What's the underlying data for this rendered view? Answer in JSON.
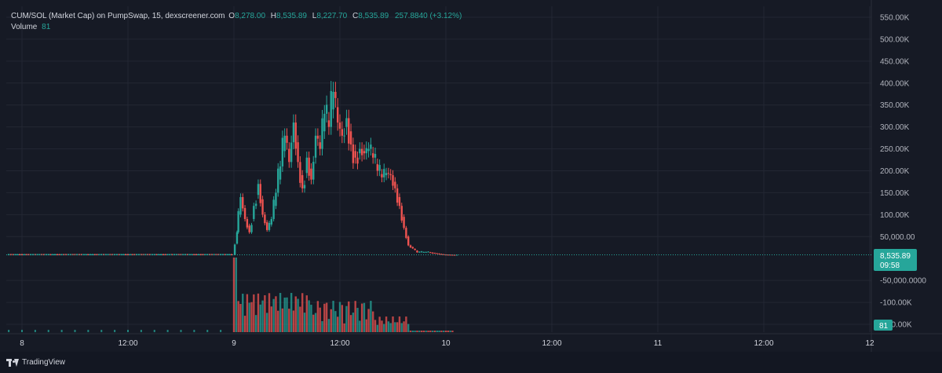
{
  "legend": {
    "title": "CUM/SOL (Market Cap) on PumpSwap, 15, dexscreener.com",
    "o_label": "O",
    "o_value": "8,278.00",
    "h_label": "H",
    "h_value": "8,535.89",
    "l_label": "L",
    "l_value": "8,227.70",
    "c_label": "C",
    "c_value": "8,535.89",
    "change": "257.8840 (+3.12%)",
    "volume_label": "Volume",
    "volume_value": "81"
  },
  "price_badge": {
    "value": "8,535.89",
    "countdown": "09:58"
  },
  "volume_badge": {
    "value": "81"
  },
  "branding": {
    "name": "TradingView"
  },
  "colors": {
    "background": "#161a25",
    "grid": "#232733",
    "up": "#26a69a",
    "down": "#ef5350",
    "text": "#b2b5be"
  },
  "chart_data": {
    "type": "candlestick",
    "y_axis_labels": [
      {
        "value": 550000,
        "label": "550.00K"
      },
      {
        "value": 500000,
        "label": "500.00K"
      },
      {
        "value": 450000,
        "label": "450.00K"
      },
      {
        "value": 400000,
        "label": "400.00K"
      },
      {
        "value": 350000,
        "label": "350.00K"
      },
      {
        "value": 300000,
        "label": "300.00K"
      },
      {
        "value": 250000,
        "label": "250.00K"
      },
      {
        "value": 200000,
        "label": "200.00K"
      },
      {
        "value": 150000,
        "label": "150.00K"
      },
      {
        "value": 100000,
        "label": "100.00K"
      },
      {
        "value": 50000,
        "label": "50,000.00"
      },
      {
        "value": -50000,
        "label": "-50,000.0000"
      },
      {
        "value": -100000,
        "label": "-100.00K"
      },
      {
        "value": -150000,
        "label": "-150.00K"
      }
    ],
    "ylim": [
      -160000,
      570000
    ],
    "x_axis_labels": [
      {
        "t": 0,
        "label": "8"
      },
      {
        "t": 12,
        "label": "12:00"
      },
      {
        "t": 24,
        "label": "9"
      },
      {
        "t": 36,
        "label": "12:00"
      },
      {
        "t": 48,
        "label": "10"
      },
      {
        "t": 60,
        "label": "12:00"
      },
      {
        "t": 72,
        "label": "11"
      },
      {
        "t": 84,
        "label": "12:00"
      },
      {
        "t": 96,
        "label": "12"
      }
    ],
    "last_price": 8535.89,
    "series": [
      {
        "name": "Market Cap",
        "points": [
          [
            24.1,
            8000,
            60000
          ],
          [
            24.5,
            60000,
            140000
          ],
          [
            25.0,
            140000,
            90000
          ],
          [
            25.5,
            90000,
            60000
          ],
          [
            26.0,
            60000,
            120000
          ],
          [
            26.5,
            120000,
            170000
          ],
          [
            27.0,
            170000,
            100000
          ],
          [
            27.5,
            100000,
            65000
          ],
          [
            28.0,
            65000,
            90000
          ],
          [
            28.5,
            90000,
            150000
          ],
          [
            29.0,
            150000,
            210000
          ],
          [
            29.5,
            210000,
            280000
          ],
          [
            30.0,
            280000,
            220000
          ],
          [
            30.5,
            220000,
            310000
          ],
          [
            31.0,
            310000,
            220000
          ],
          [
            31.5,
            220000,
            160000
          ],
          [
            32.0,
            160000,
            230000
          ],
          [
            32.5,
            230000,
            180000
          ],
          [
            33.0,
            180000,
            280000
          ],
          [
            33.5,
            280000,
            250000
          ],
          [
            34.0,
            250000,
            330000
          ],
          [
            34.5,
            330000,
            300000
          ],
          [
            35.0,
            300000,
            380000
          ],
          [
            35.5,
            380000,
            310000
          ],
          [
            36.0,
            310000,
            280000
          ],
          [
            36.5,
            280000,
            320000
          ],
          [
            37.0,
            320000,
            260000
          ],
          [
            37.5,
            260000,
            230000
          ],
          [
            38.0,
            230000,
            250000
          ],
          [
            38.5,
            250000,
            240000
          ],
          [
            39.0,
            240000,
            250000
          ],
          [
            39.5,
            250000,
            230000
          ],
          [
            40.0,
            230000,
            200000
          ],
          [
            40.5,
            200000,
            185000
          ],
          [
            41.0,
            185000,
            195000
          ],
          [
            41.5,
            195000,
            190000
          ],
          [
            42.0,
            190000,
            160000
          ],
          [
            42.5,
            160000,
            120000
          ],
          [
            43.0,
            120000,
            70000
          ],
          [
            43.5,
            70000,
            30000
          ],
          [
            44.0,
            30000,
            14000
          ],
          [
            45.0,
            14000,
            15000
          ],
          [
            46.0,
            15000,
            12000
          ],
          [
            47.0,
            12000,
            9000
          ],
          [
            48.0,
            9000,
            8300
          ],
          [
            49.0,
            8300,
            8536
          ]
        ]
      }
    ],
    "volume_series": {
      "name": "Volume"
    }
  }
}
